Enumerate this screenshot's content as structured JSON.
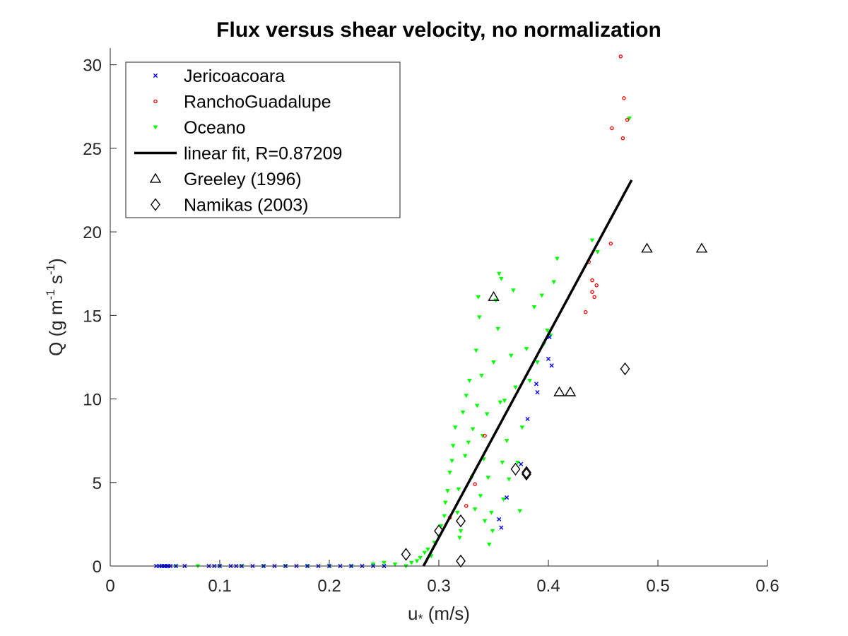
{
  "chart_data": {
    "type": "scatter",
    "title": "Flux versus shear velocity, no normalization",
    "xlabel": "u* (m/s)",
    "xlabel_main": "u",
    "xlabel_sub": "*",
    "xlabel_rest": " (m/s)",
    "ylabel": "Q (g m-1 s-1)",
    "ylabel_parts": {
      "a": "Q (g m",
      "sup1": "-1",
      "b": " s",
      "sup2": "-1",
      "c": ")"
    },
    "xlim": [
      0,
      0.6
    ],
    "ylim": [
      0,
      31
    ],
    "xticks": [
      0,
      0.1,
      0.2,
      0.3,
      0.4,
      0.5,
      0.6
    ],
    "xtick_labels": [
      "0",
      "0.1",
      "0.2",
      "0.3",
      "0.4",
      "0.5",
      "0.6"
    ],
    "yticks": [
      0,
      5,
      10,
      15,
      20,
      25,
      30
    ],
    "ytick_labels": [
      "0",
      "5",
      "10",
      "15",
      "20",
      "25",
      "30"
    ],
    "grid": false,
    "legend_position": "top-left",
    "series": [
      {
        "name": "Jericoacoara",
        "marker": "x",
        "color": "#0000ff",
        "points": [
          [
            0.042,
            0
          ],
          [
            0.045,
            0
          ],
          [
            0.047,
            0
          ],
          [
            0.049,
            0
          ],
          [
            0.05,
            0
          ],
          [
            0.052,
            0
          ],
          [
            0.053,
            0
          ],
          [
            0.055,
            0
          ],
          [
            0.06,
            0
          ],
          [
            0.068,
            0
          ],
          [
            0.09,
            0
          ],
          [
            0.095,
            0
          ],
          [
            0.1,
            0
          ],
          [
            0.11,
            0
          ],
          [
            0.115,
            0
          ],
          [
            0.12,
            0
          ],
          [
            0.13,
            0
          ],
          [
            0.14,
            0
          ],
          [
            0.15,
            0
          ],
          [
            0.16,
            0
          ],
          [
            0.17,
            0
          ],
          [
            0.18,
            0
          ],
          [
            0.19,
            0
          ],
          [
            0.2,
            0
          ],
          [
            0.21,
            0
          ],
          [
            0.22,
            0
          ],
          [
            0.23,
            0
          ],
          [
            0.24,
            0
          ],
          [
            0.25,
            0
          ],
          [
            0.355,
            2.8
          ],
          [
            0.357,
            2.3
          ],
          [
            0.362,
            4.1
          ],
          [
            0.375,
            6.1
          ],
          [
            0.381,
            8.8
          ],
          [
            0.389,
            10.9
          ],
          [
            0.39,
            10.4
          ],
          [
            0.4,
            12.4
          ],
          [
            0.403,
            12.0
          ],
          [
            0.401,
            13.7
          ]
        ]
      },
      {
        "name": "RanchoGuadalupe",
        "marker": "o",
        "color": "#ff0000",
        "points": [
          [
            0.31,
            2.9
          ],
          [
            0.325,
            3.6
          ],
          [
            0.333,
            4.9
          ],
          [
            0.342,
            7.8
          ],
          [
            0.434,
            15.2
          ],
          [
            0.437,
            18.2
          ],
          [
            0.44,
            16.4
          ],
          [
            0.44,
            17.1
          ],
          [
            0.442,
            16.1
          ],
          [
            0.444,
            16.8
          ],
          [
            0.457,
            19.3
          ],
          [
            0.458,
            26.2
          ],
          [
            0.466,
            30.5
          ],
          [
            0.468,
            25.6
          ],
          [
            0.469,
            28.0
          ],
          [
            0.472,
            26.7
          ]
        ]
      },
      {
        "name": "Oceano",
        "marker": "v",
        "color": "#00ff00",
        "points": [
          [
            0.06,
            0
          ],
          [
            0.08,
            0
          ],
          [
            0.1,
            0
          ],
          [
            0.12,
            0
          ],
          [
            0.14,
            0
          ],
          [
            0.16,
            0
          ],
          [
            0.18,
            0
          ],
          [
            0.2,
            0
          ],
          [
            0.22,
            0
          ],
          [
            0.24,
            0.1
          ],
          [
            0.25,
            0.2
          ],
          [
            0.26,
            0.1
          ],
          [
            0.27,
            0
          ],
          [
            0.275,
            0.2
          ],
          [
            0.28,
            0.3
          ],
          [
            0.283,
            0.5
          ],
          [
            0.287,
            0.8
          ],
          [
            0.29,
            1.0
          ],
          [
            0.293,
            0.6
          ],
          [
            0.296,
            1.4
          ],
          [
            0.3,
            1.8
          ],
          [
            0.302,
            2.4
          ],
          [
            0.305,
            3.0
          ],
          [
            0.306,
            3.8
          ],
          [
            0.308,
            4.5
          ],
          [
            0.31,
            5.6
          ],
          [
            0.312,
            6.3
          ],
          [
            0.313,
            7.2
          ],
          [
            0.315,
            8.3
          ],
          [
            0.317,
            3.2
          ],
          [
            0.318,
            4.6
          ],
          [
            0.319,
            1.7
          ],
          [
            0.32,
            2.1
          ],
          [
            0.322,
            9.2
          ],
          [
            0.324,
            6.6
          ],
          [
            0.325,
            10.2
          ],
          [
            0.327,
            7.4
          ],
          [
            0.328,
            11.1
          ],
          [
            0.33,
            5.3
          ],
          [
            0.331,
            8.2
          ],
          [
            0.333,
            3.4
          ],
          [
            0.334,
            12.9
          ],
          [
            0.335,
            9.6
          ],
          [
            0.336,
            16.1
          ],
          [
            0.337,
            14.9
          ],
          [
            0.338,
            4.2
          ],
          [
            0.339,
            11.4
          ],
          [
            0.34,
            7.8
          ],
          [
            0.341,
            6.4
          ],
          [
            0.342,
            2.7
          ],
          [
            0.344,
            9.1
          ],
          [
            0.345,
            5.3
          ],
          [
            0.346,
            1.3
          ],
          [
            0.348,
            3.2
          ],
          [
            0.349,
            2.1
          ],
          [
            0.35,
            12.2
          ],
          [
            0.352,
            15.9
          ],
          [
            0.354,
            14.2
          ],
          [
            0.355,
            17.5
          ],
          [
            0.356,
            9.8
          ],
          [
            0.357,
            17.2
          ],
          [
            0.358,
            6.2
          ],
          [
            0.359,
            4.0
          ],
          [
            0.36,
            9.9
          ],
          [
            0.362,
            7.5
          ],
          [
            0.364,
            5.2
          ],
          [
            0.366,
            12.6
          ],
          [
            0.368,
            16.5
          ],
          [
            0.37,
            10.7
          ],
          [
            0.372,
            6.2
          ],
          [
            0.374,
            3.3
          ],
          [
            0.376,
            8.3
          ],
          [
            0.38,
            13.0
          ],
          [
            0.383,
            11.1
          ],
          [
            0.387,
            15.5
          ],
          [
            0.39,
            12.2
          ],
          [
            0.394,
            16.2
          ],
          [
            0.396,
            13.3
          ],
          [
            0.399,
            14.1
          ],
          [
            0.402,
            13.8
          ],
          [
            0.405,
            17.0
          ],
          [
            0.408,
            18.4
          ],
          [
            0.44,
            19.5
          ],
          [
            0.445,
            18.8
          ],
          [
            0.474,
            26.8
          ]
        ]
      },
      {
        "name": "Greeley (1996)",
        "marker": "triangle",
        "color": "#000000",
        "points": [
          [
            0.35,
            16.1
          ],
          [
            0.41,
            10.4
          ],
          [
            0.42,
            10.4
          ],
          [
            0.49,
            19.0
          ],
          [
            0.54,
            19.0
          ]
        ]
      },
      {
        "name": "Namikas (2003)",
        "marker": "diamond",
        "color": "#000000",
        "points": [
          [
            0.27,
            0.7
          ],
          [
            0.3,
            2.1
          ],
          [
            0.32,
            2.7
          ],
          [
            0.32,
            0.3
          ],
          [
            0.37,
            5.8
          ],
          [
            0.38,
            5.6
          ],
          [
            0.38,
            5.5
          ],
          [
            0.47,
            11.8
          ]
        ]
      }
    ],
    "fit": {
      "name": "linear fit, R=0.87209",
      "color": "#000000",
      "points": [
        [
          0.286,
          0
        ],
        [
          0.476,
          23.1
        ]
      ]
    }
  }
}
